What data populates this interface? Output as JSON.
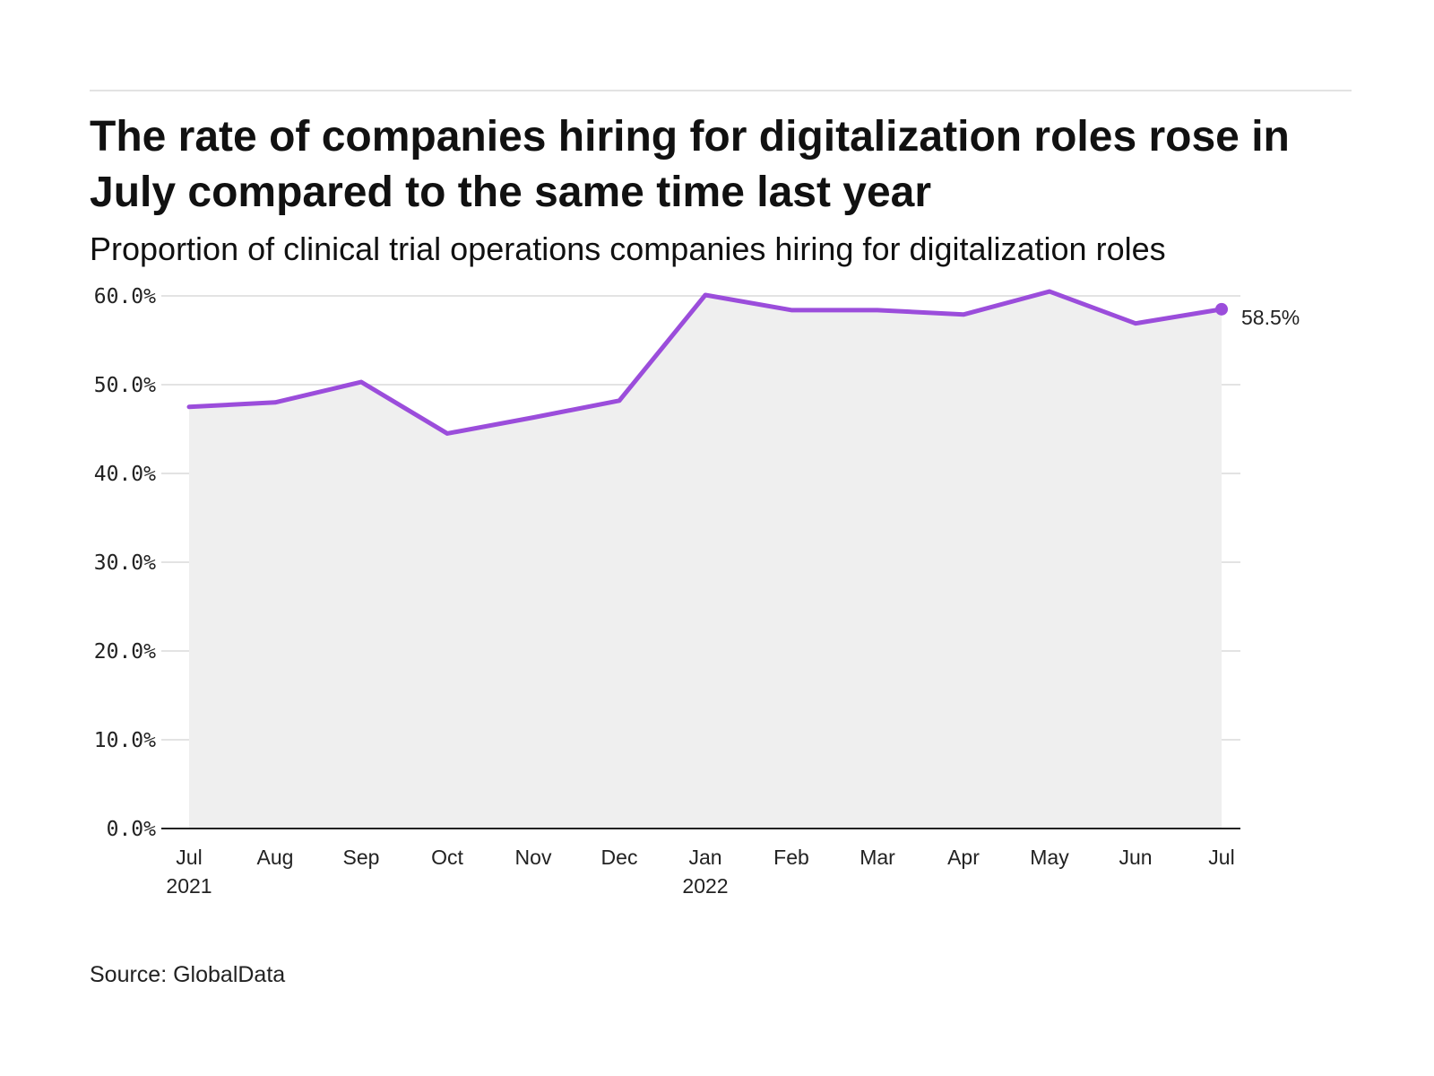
{
  "title": "The rate of companies hiring for digitalization roles rose in July compared to the same time last year",
  "subtitle": "Proportion of clinical trial operations companies hiring for digitalization roles",
  "source": "Source: GlobalData",
  "colors": {
    "line": "#9b4ddb",
    "area": "#efefef",
    "grid": "#e3e3e3",
    "axis": "#222222"
  },
  "chart_data": {
    "type": "area",
    "x": [
      "Jul 2021",
      "Aug 2021",
      "Sep 2021",
      "Oct 2021",
      "Nov 2021",
      "Dec 2021",
      "Jan 2022",
      "Feb 2022",
      "Mar 2022",
      "Apr 2022",
      "May 2022",
      "Jun 2022",
      "Jul 2022"
    ],
    "x_tick_labels": [
      [
        "Jul",
        "2021"
      ],
      [
        "Aug"
      ],
      [
        "Sep"
      ],
      [
        "Oct"
      ],
      [
        "Nov"
      ],
      [
        "Dec"
      ],
      [
        "Jan",
        "2022"
      ],
      [
        "Feb"
      ],
      [
        "Mar"
      ],
      [
        "Apr"
      ],
      [
        "May"
      ],
      [
        "Jun"
      ],
      [
        "Jul"
      ]
    ],
    "series": [
      {
        "values": [
          47.5,
          48.0,
          50.3,
          44.5,
          46.3,
          48.2,
          60.1,
          58.4,
          58.4,
          57.9,
          60.5,
          56.9,
          58.5
        ]
      }
    ],
    "end_label": "58.5%",
    "ylim": [
      0,
      60
    ],
    "y_ticks": [
      0,
      10,
      20,
      30,
      40,
      50,
      60
    ],
    "y_tick_labels": [
      "0.0%",
      "10.0%",
      "20.0%",
      "30.0%",
      "40.0%",
      "50.0%",
      "60.0%"
    ],
    "grid": true,
    "xlabel": "",
    "ylabel": ""
  }
}
